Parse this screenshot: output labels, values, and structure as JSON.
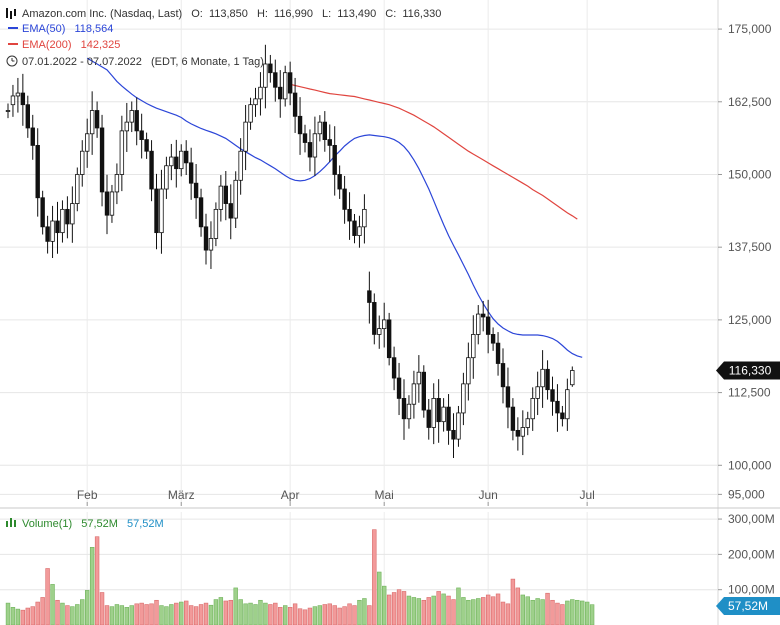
{
  "chart_data": [
    {
      "type": "candlestick",
      "header": {
        "title": "Amazon.com Inc. (Nasdaq, Last)",
        "ohlc": [
          {
            "label": "O:",
            "value": "113,850"
          },
          {
            "label": "H:",
            "value": "116,990"
          },
          {
            "label": "L:",
            "value": "113,490"
          },
          {
            "label": "C:",
            "value": "116,330"
          }
        ],
        "ema50_label": "EMA(50)",
        "ema50_value": "118,564",
        "ema200_label": "EMA(200)",
        "ema200_value": "142,325",
        "period_text": "07.01.2022 - 07.07.2022",
        "period_info": "(EDT, 6 Monate, 1 Tag)"
      },
      "last_price_tag": "116,330",
      "ylim": [
        93,
        180
      ],
      "y_ticks": [
        {
          "value": 175,
          "label": "175,000"
        },
        {
          "value": 162.5,
          "label": "162,500"
        },
        {
          "value": 150,
          "label": "150,000"
        },
        {
          "value": 137.5,
          "label": "137,500"
        },
        {
          "value": 125,
          "label": "125,000"
        },
        {
          "value": 112.5,
          "label": "112,500"
        },
        {
          "value": 100,
          "label": "100,000"
        },
        {
          "value": 95,
          "label": "95,000"
        }
      ],
      "x_ticks": [
        {
          "label": "Feb",
          "index": 16
        },
        {
          "label": "März",
          "index": 35
        },
        {
          "label": "Apr",
          "index": 57
        },
        {
          "label": "Mai",
          "index": 76
        },
        {
          "label": "Jun",
          "index": 97
        },
        {
          "label": "Jul",
          "index": 117
        }
      ],
      "grid": true,
      "series_colors": {
        "up": "#ffffff",
        "down": "#111111",
        "ema50": "#2c46d8",
        "ema200": "#e0453f"
      },
      "ohlc_close": [
        161.0,
        163.5,
        164.0,
        162.0,
        158.0,
        155.0,
        146.0,
        141.0,
        138.5,
        142.0,
        140.0,
        144.0,
        141.5,
        145.0,
        150.0,
        154.0,
        157.0,
        161.0,
        158.0,
        147.0,
        143.0,
        147.0,
        150.0,
        157.5,
        159.0,
        161.0,
        157.5,
        156.0,
        154.0,
        147.5,
        140.0,
        147.5,
        151.5,
        153.0,
        151.0,
        154.0,
        152.0,
        148.5,
        146.0,
        141.0,
        137.0,
        139.0,
        144.0,
        148.0,
        145.0,
        142.5,
        149.0,
        154.0,
        159.0,
        162.0,
        163.0,
        165.0,
        169.0,
        167.5,
        165.0,
        163.0,
        167.5,
        164.0,
        160.0,
        157.0,
        155.5,
        153.0,
        157.0,
        159.0,
        156.0,
        155.0,
        150.0,
        147.5,
        144.0,
        142.0,
        139.5,
        141.0,
        144.0,
        128.0,
        122.5,
        123.5,
        125.0,
        118.5,
        115.0,
        111.5,
        108.0,
        110.5,
        114.0,
        116.0,
        109.5,
        106.5,
        111.5,
        107.5,
        110.0,
        106.0,
        104.5,
        109.0,
        114.0,
        118.5,
        122.5,
        126.0,
        125.5,
        122.5,
        121.0,
        117.5,
        113.5,
        110.0,
        106.0,
        105.0,
        106.5,
        108.0,
        111.5,
        113.5,
        116.5,
        113.0,
        111.0,
        109.0,
        108.0,
        113.0,
        116.3
      ],
      "ohlc_open": [
        161.0,
        162.0,
        163.5,
        164.0,
        162.0,
        158.0,
        155.0,
        146.0,
        141.0,
        138.5,
        142.0,
        140.0,
        144.0,
        141.5,
        145.0,
        150.0,
        154.0,
        157.0,
        161.0,
        158.0,
        147.0,
        143.0,
        147.0,
        150.0,
        157.5,
        159.0,
        161.0,
        157.5,
        156.0,
        154.0,
        147.5,
        140.0,
        147.5,
        151.5,
        153.0,
        151.0,
        154.0,
        152.0,
        148.5,
        146.0,
        141.0,
        137.0,
        139.0,
        144.0,
        148.0,
        145.0,
        142.5,
        149.0,
        154.0,
        159.0,
        162.0,
        163.0,
        165.0,
        169.0,
        167.5,
        165.0,
        163.0,
        167.5,
        164.0,
        160.0,
        157.0,
        155.5,
        153.0,
        157.0,
        159.0,
        156.0,
        155.0,
        150.0,
        147.5,
        144.0,
        142.0,
        139.5,
        141.0,
        130.0,
        128.0,
        122.5,
        123.5,
        125.0,
        118.5,
        115.0,
        111.5,
        108.0,
        110.5,
        114.0,
        116.0,
        109.5,
        106.5,
        111.5,
        107.5,
        110.0,
        106.0,
        104.5,
        109.0,
        114.0,
        118.5,
        122.5,
        126.0,
        125.5,
        122.5,
        121.0,
        117.5,
        113.5,
        110.0,
        106.0,
        105.0,
        106.5,
        108.0,
        111.5,
        113.5,
        116.5,
        113.0,
        111.0,
        109.0,
        108.0,
        113.85
      ],
      "ema50": [
        170.0,
        169.5,
        169.0,
        168.5,
        168.0,
        167.0,
        166.0,
        165.2,
        164.5,
        163.8,
        163.2,
        162.7,
        162.2,
        161.8,
        161.4,
        161.1,
        160.8,
        160.5,
        160.2,
        159.8,
        159.2,
        158.7,
        158.3,
        157.9,
        157.6,
        157.3,
        157.0,
        156.6,
        156.2,
        155.6,
        155.0,
        154.4,
        153.9,
        153.4,
        152.9,
        152.5,
        152.0,
        151.5,
        151.0,
        150.4,
        149.8,
        149.3,
        149.0,
        148.9,
        149.0,
        149.3,
        149.8,
        150.5,
        151.3,
        152.2,
        153.2,
        154.0,
        154.9,
        155.6,
        156.2,
        156.5,
        156.7,
        156.8,
        156.7,
        156.6,
        156.5,
        156.3,
        156.0,
        155.5,
        154.8,
        153.8,
        152.5,
        151.0,
        149.3,
        147.5,
        145.5,
        143.4,
        141.4,
        139.5,
        137.8,
        136.2,
        134.5,
        132.8,
        131.0,
        129.3,
        127.8,
        126.4,
        125.2,
        124.3,
        123.6,
        123.1,
        122.7,
        122.5,
        122.4,
        122.4,
        122.4,
        122.4,
        122.3,
        122.1,
        121.8,
        121.3,
        120.6,
        119.8,
        119.2,
        118.8,
        118.56
      ],
      "ema50_start_index": 16,
      "ema200": [
        165.5,
        165.3,
        165.1,
        164.9,
        164.7,
        164.5,
        164.3,
        164.1,
        163.9,
        163.8,
        163.7,
        163.6,
        163.5,
        163.4,
        163.2,
        163.0,
        162.8,
        162.6,
        162.4,
        162.2,
        162.0,
        161.7,
        161.4,
        161.0,
        160.6,
        160.2,
        159.7,
        159.2,
        158.7,
        158.2,
        157.6,
        157.0,
        156.4,
        155.8,
        155.2,
        154.6,
        154.0,
        153.5,
        153.0,
        152.5,
        152.0,
        151.5,
        151.0,
        150.5,
        150.0,
        149.5,
        149.0,
        148.5,
        148.0,
        147.4,
        146.9,
        146.4,
        145.8,
        145.2,
        144.6,
        144.0,
        143.4,
        142.9,
        142.325
      ],
      "ema200_start_index": 57
    },
    {
      "type": "bar",
      "title": "Volume(1)",
      "value_a": "57,52M",
      "value_b": "57,52M",
      "last_tag": "57,52M",
      "ylim": [
        0,
        320
      ],
      "y_ticks": [
        {
          "value": 300,
          "label": "300,00M"
        },
        {
          "value": 200,
          "label": "200,00M"
        },
        {
          "value": 100,
          "label": "100,00M"
        }
      ],
      "colors": {
        "up": "#9ed08b",
        "down": "#f29a9a",
        "tag": "#1f8fc6",
        "title": "#2d8a2d"
      },
      "values": [
        62,
        50,
        45,
        42,
        48,
        52,
        65,
        78,
        160,
        115,
        70,
        62,
        55,
        52,
        58,
        72,
        98,
        220,
        250,
        92,
        55,
        52,
        58,
        55,
        50,
        55,
        60,
        62,
        58,
        60,
        70,
        55,
        52,
        58,
        62,
        65,
        68,
        55,
        52,
        58,
        62,
        56,
        72,
        78,
        68,
        70,
        105,
        72,
        60,
        62,
        58,
        70,
        62,
        58,
        62,
        50,
        55,
        50,
        60,
        46,
        43,
        48,
        52,
        55,
        58,
        60,
        55,
        48,
        52,
        60,
        55,
        70,
        75,
        55,
        270,
        150,
        110,
        85,
        92,
        100,
        95,
        82,
        78,
        75,
        70,
        78,
        82,
        95,
        88,
        82,
        72,
        105,
        78,
        70,
        72,
        75,
        78,
        85,
        80,
        88,
        65,
        60,
        130,
        105,
        85,
        80,
        70,
        75,
        72,
        90,
        70,
        62,
        58,
        68,
        72,
        70,
        68,
        65,
        57.52
      ]
    }
  ]
}
